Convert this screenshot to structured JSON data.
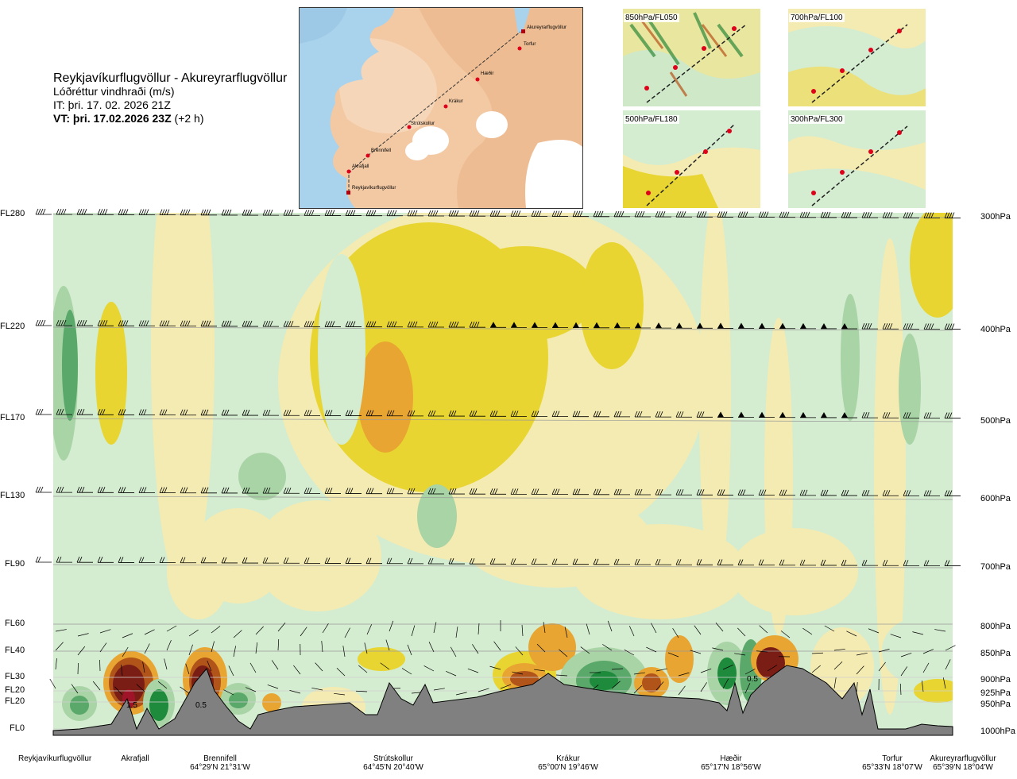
{
  "title": {
    "route": "Reykjavíkurflugvöllur - Akureyrarflugvöllur",
    "variable": "Lóðréttur vindhraði (m/s)",
    "it": "IT: þri. 17. 02. 2026 21Z",
    "vt_bold": "VT: þri. 17.02.2026 23Z",
    "vt_offset": "(+2 h)"
  },
  "map": {
    "waypoints": [
      "Akureyrarflugvöllur",
      "Torfur",
      "Hæðir",
      "Krákur",
      "Strútskollur",
      "Brennifell",
      "Akrafjall",
      "Reykjavíkurflugvöllur"
    ],
    "colors": {
      "land": "#f3c9a4",
      "sea": "#a9d2ec",
      "ice": "#ffffff",
      "route": "#333333",
      "point": "#e0001a"
    }
  },
  "insets": [
    {
      "label": "850hPa/FL050"
    },
    {
      "label": "700hPa/FL100"
    },
    {
      "label": "500hPa/FL180"
    },
    {
      "label": "300hPa/FL300"
    }
  ],
  "chart_data": {
    "type": "heatmap",
    "title": "Lóðréttur vindhraði (m/s)",
    "y_left_ticks": [
      "FL280",
      "FL220",
      "FL170",
      "FL130",
      "FL90",
      "FL60",
      "FL40",
      "FL30",
      "FL20",
      "FL20",
      "FL0"
    ],
    "y_right_ticks": [
      "300hPa",
      "400hPa",
      "500hPa",
      "600hPa",
      "700hPa",
      "800hPa",
      "850hPa",
      "900hPa",
      "925hPa",
      "950hPa",
      "1000hPa"
    ],
    "pressure_levels_hPa": [
      300,
      400,
      500,
      600,
      700,
      800,
      850,
      900,
      925,
      950,
      1000
    ],
    "x_locations": [
      {
        "name": "Reykjavíkurflugvöllur",
        "coord": ""
      },
      {
        "name": "Akrafjall",
        "coord": ""
      },
      {
        "name": "Brennifell",
        "coord": "64°29'N 21°31'W"
      },
      {
        "name": "Strútskollur",
        "coord": "64°45'N 20°40'W"
      },
      {
        "name": "Krákur",
        "coord": "65°00'N 19°46'W"
      },
      {
        "name": "Hæðir",
        "coord": "65°17'N 18°56'W"
      },
      {
        "name": "Torfur",
        "coord": "65°33'N 18°07'W"
      },
      {
        "name": "Akureyrarflugvöllur",
        "coord": "65°39'N 18°04'W"
      }
    ],
    "point_labels": [
      "1.5",
      "0.5",
      "0.5"
    ],
    "colors": {
      "strong_up": "#7a1d14",
      "up3": "#b0541a",
      "up2": "#e8a532",
      "up1": "#e8d531",
      "up0": "#f4ebb2",
      "neutral": "#fefce4",
      "down0": "#d4ecd0",
      "down1": "#a9d4a6",
      "down2": "#5aa86a",
      "down3": "#1d8a3c",
      "terrain": "#808080"
    }
  }
}
